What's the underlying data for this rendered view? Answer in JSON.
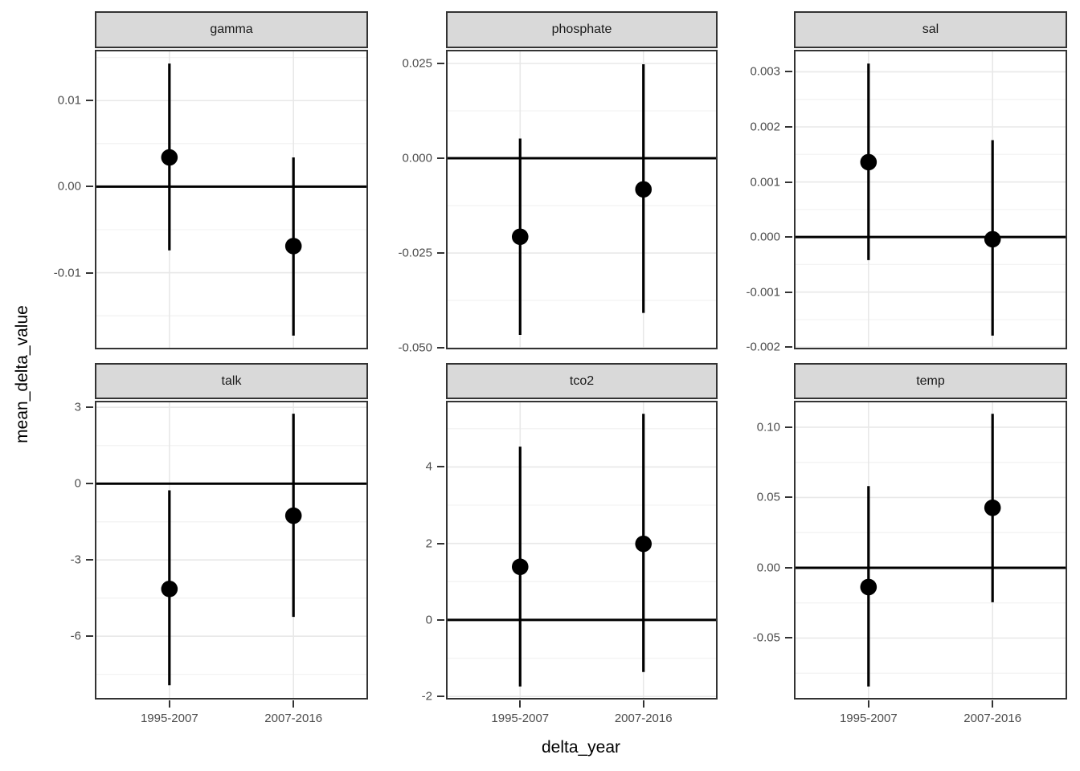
{
  "chart_data": {
    "type": "scatter",
    "subtype": "point-range (mean with vertical error bars), faceted 2x3 grid, free y scales",
    "title": "",
    "xlabel": "delta_year",
    "ylabel": "mean_delta_value",
    "categories": [
      "1995-2007",
      "2007-2016"
    ],
    "reference_line_y": 0,
    "grid": "on",
    "legend": "none",
    "facets": [
      {
        "label": "gamma",
        "ylim": [
          -0.0189,
          0.0159
        ],
        "y_ticks": [
          {
            "value": 0.01,
            "label": "0.01"
          },
          {
            "value": 0.0,
            "label": "0.00"
          },
          {
            "value": -0.01,
            "label": "-0.01"
          }
        ],
        "points": [
          {
            "category": "1995-2007",
            "mean": 0.0034,
            "lower": -0.0074,
            "upper": 0.0143
          },
          {
            "category": "2007-2016",
            "mean": -0.0069,
            "lower": -0.0173,
            "upper": 0.0034
          }
        ]
      },
      {
        "label": "phosphate",
        "ylim": [
          -0.0504,
          0.0286
        ],
        "y_ticks": [
          {
            "value": 0.025,
            "label": "0.025"
          },
          {
            "value": 0.0,
            "label": "0.000"
          },
          {
            "value": -0.025,
            "label": "-0.025"
          },
          {
            "value": -0.05,
            "label": "-0.050"
          }
        ],
        "points": [
          {
            "category": "1995-2007",
            "mean": -0.0207,
            "lower": -0.0466,
            "upper": 0.0052
          },
          {
            "category": "2007-2016",
            "mean": -0.0082,
            "lower": -0.0408,
            "upper": 0.0248
          }
        ]
      },
      {
        "label": "sal",
        "ylim": [
          -0.00204,
          0.0034
        ],
        "y_ticks": [
          {
            "value": 0.003,
            "label": "0.003"
          },
          {
            "value": 0.002,
            "label": "0.002"
          },
          {
            "value": 0.001,
            "label": "0.001"
          },
          {
            "value": 0.0,
            "label": "0.000"
          },
          {
            "value": -0.001,
            "label": "-0.001"
          },
          {
            "value": -0.002,
            "label": "-0.002"
          }
        ],
        "points": [
          {
            "category": "1995-2007",
            "mean": 0.00136,
            "lower": -0.00042,
            "upper": 0.00315
          },
          {
            "category": "2007-2016",
            "mean": -4e-05,
            "lower": -0.00179,
            "upper": 0.00176
          }
        ]
      },
      {
        "label": "talk",
        "ylim": [
          -8.49,
          3.26
        ],
        "y_ticks": [
          {
            "value": 3,
            "label": "3"
          },
          {
            "value": 0,
            "label": "0"
          },
          {
            "value": -3,
            "label": "-3"
          },
          {
            "value": -6,
            "label": "-6"
          }
        ],
        "points": [
          {
            "category": "1995-2007",
            "mean": -4.14,
            "lower": -7.93,
            "upper": -0.26
          },
          {
            "category": "2007-2016",
            "mean": -1.26,
            "lower": -5.24,
            "upper": 2.75
          }
        ]
      },
      {
        "label": "tco2",
        "ylim": [
          -2.08,
          5.73
        ],
        "y_ticks": [
          {
            "value": 4,
            "label": "4"
          },
          {
            "value": 2,
            "label": "2"
          },
          {
            "value": 0,
            "label": "0"
          },
          {
            "value": -2,
            "label": "-2"
          }
        ],
        "points": [
          {
            "category": "1995-2007",
            "mean": 1.39,
            "lower": -1.74,
            "upper": 4.53
          },
          {
            "category": "2007-2016",
            "mean": 1.99,
            "lower": -1.36,
            "upper": 5.39
          }
        ]
      },
      {
        "label": "temp",
        "ylim": [
          -0.0937,
          0.1188
        ],
        "y_ticks": [
          {
            "value": 0.1,
            "label": "0.10"
          },
          {
            "value": 0.05,
            "label": "0.05"
          },
          {
            "value": 0.0,
            "label": "0.00"
          },
          {
            "value": -0.05,
            "label": "-0.05"
          }
        ],
        "points": [
          {
            "category": "1995-2007",
            "mean": -0.0137,
            "lower": -0.0844,
            "upper": 0.0581
          },
          {
            "category": "2007-2016",
            "mean": 0.0427,
            "lower": -0.0245,
            "upper": 0.1095
          }
        ]
      }
    ]
  },
  "colors": {
    "background": "#ffffff",
    "point": "#000000",
    "error_bar": "#000000",
    "reference_line": "#000000",
    "strip_fill": "#d9d9d9",
    "panel_border": "#333333",
    "grid_major": "#e8e8e8",
    "grid_minor": "#f3f3f3",
    "axis_text": "#4d4d4d",
    "axis_title": "#000000",
    "tick_mark": "#333333"
  }
}
